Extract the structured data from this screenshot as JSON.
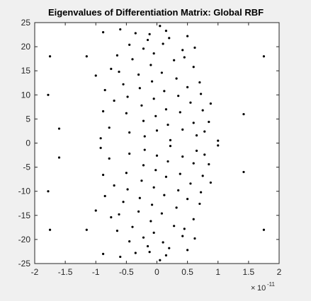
{
  "chart_data": {
    "type": "scatter",
    "title": "Eigenvalues of Differentiation Matrix: Global RBF",
    "xlabel": "",
    "ylabel": "",
    "x_exponent_label": "10",
    "x_exponent_power": "-11",
    "xlim": [
      -2,
      2
    ],
    "ylim": [
      -25,
      25
    ],
    "x_ticks": [
      -2,
      -1.5,
      -1,
      -0.5,
      0,
      0.5,
      1,
      1.5,
      2
    ],
    "x_tick_labels": [
      "-2",
      "-1.5",
      "-1",
      "-0.5",
      "0",
      "0.5",
      "1",
      "1.5",
      "2"
    ],
    "y_ticks": [
      -25,
      -20,
      -15,
      -10,
      -5,
      0,
      5,
      10,
      15,
      20,
      25
    ],
    "y_tick_labels": [
      "-25",
      "-20",
      "-15",
      "-10",
      "-5",
      "0",
      "5",
      "10",
      "15",
      "20",
      "25"
    ],
    "grid": false,
    "colors": {
      "marker": "#000000",
      "axes_bg": "#ffffff",
      "figure_bg": "#f0f0f0"
    },
    "series": [
      {
        "name": "",
        "points": [
          [
            -1.75,
            18
          ],
          [
            -1.75,
            -18
          ],
          [
            1.75,
            18
          ],
          [
            1.75,
            -18
          ],
          [
            -1.78,
            10
          ],
          [
            -1.78,
            -10
          ],
          [
            1.42,
            6
          ],
          [
            1.42,
            -6
          ],
          [
            -1.6,
            3
          ],
          [
            -1.6,
            -3
          ],
          [
            -1.15,
            18
          ],
          [
            -1.15,
            -18
          ],
          [
            -1.0,
            14
          ],
          [
            -1.0,
            -14
          ],
          [
            -0.88,
            23
          ],
          [
            -0.88,
            -23
          ],
          [
            -0.6,
            23.6
          ],
          [
            -0.6,
            -23.6
          ],
          [
            -0.35,
            22.8
          ],
          [
            -0.35,
            -22.8
          ],
          [
            -0.12,
            22.6
          ],
          [
            -0.12,
            -22.6
          ],
          [
            0.05,
            24.3
          ],
          [
            0.05,
            -24.3
          ],
          [
            0.15,
            23.3
          ],
          [
            0.15,
            -23.3
          ],
          [
            0.5,
            22.2
          ],
          [
            0.5,
            -22.2
          ],
          [
            -0.75,
            15.4
          ],
          [
            -0.75,
            -15.4
          ],
          [
            -0.62,
            14.8
          ],
          [
            -0.62,
            -14.8
          ],
          [
            -0.4,
            17.4
          ],
          [
            -0.4,
            -17.4
          ],
          [
            -0.22,
            19.6
          ],
          [
            -0.22,
            -19.6
          ],
          [
            -0.05,
            18.6
          ],
          [
            -0.05,
            -18.6
          ],
          [
            0.1,
            20.6
          ],
          [
            0.1,
            -20.6
          ],
          [
            0.28,
            17.2
          ],
          [
            0.28,
            -17.2
          ],
          [
            0.42,
            19.3
          ],
          [
            0.42,
            -19.3
          ],
          [
            0.6,
            15.8
          ],
          [
            0.6,
            -15.8
          ],
          [
            0.7,
            12.6
          ],
          [
            0.7,
            -12.6
          ],
          [
            0.88,
            8.2
          ],
          [
            0.88,
            -8.2
          ],
          [
            1.0,
            0.5
          ],
          [
            1.0,
            -0.5
          ],
          [
            0.85,
            4.4
          ],
          [
            0.85,
            -4.4
          ],
          [
            -0.92,
            1.0
          ],
          [
            -0.92,
            -1.0
          ],
          [
            -0.88,
            6.6
          ],
          [
            -0.88,
            -6.6
          ],
          [
            -0.85,
            11.0
          ],
          [
            -0.85,
            -11.0
          ],
          [
            -0.7,
            8.8
          ],
          [
            -0.7,
            -8.8
          ],
          [
            -0.78,
            3.2
          ],
          [
            -0.78,
            -3.2
          ],
          [
            -0.55,
            12.2
          ],
          [
            -0.55,
            -12.2
          ],
          [
            -0.48,
            9.6
          ],
          [
            -0.48,
            -9.6
          ],
          [
            -0.5,
            6.2
          ],
          [
            -0.5,
            -6.2
          ],
          [
            -0.45,
            2.2
          ],
          [
            -0.45,
            -2.2
          ],
          [
            -0.3,
            14.2
          ],
          [
            -0.3,
            -14.2
          ],
          [
            -0.28,
            11.4
          ],
          [
            -0.28,
            -11.4
          ],
          [
            -0.25,
            7.8
          ],
          [
            -0.25,
            -7.8
          ],
          [
            -0.22,
            4.6
          ],
          [
            -0.22,
            -4.6
          ],
          [
            -0.2,
            1.4
          ],
          [
            -0.2,
            -1.4
          ],
          [
            -0.1,
            16.2
          ],
          [
            -0.1,
            -16.2
          ],
          [
            -0.08,
            12.8
          ],
          [
            -0.08,
            -12.8
          ],
          [
            -0.05,
            9.2
          ],
          [
            -0.05,
            -9.2
          ],
          [
            -0.02,
            5.6
          ],
          [
            -0.02,
            -5.6
          ],
          [
            0.0,
            2.6
          ],
          [
            0.0,
            -2.6
          ],
          [
            0.08,
            14.6
          ],
          [
            0.08,
            -14.6
          ],
          [
            0.12,
            10.8
          ],
          [
            0.12,
            -10.8
          ],
          [
            0.15,
            7.0
          ],
          [
            0.15,
            -7.0
          ],
          [
            0.18,
            3.8
          ],
          [
            0.18,
            -3.8
          ],
          [
            0.22,
            0.6
          ],
          [
            0.22,
            -0.6
          ],
          [
            0.32,
            13.4
          ],
          [
            0.32,
            -13.4
          ],
          [
            0.35,
            9.8
          ],
          [
            0.35,
            -9.8
          ],
          [
            0.38,
            6.4
          ],
          [
            0.38,
            -6.4
          ],
          [
            0.42,
            2.8
          ],
          [
            0.42,
            -2.8
          ],
          [
            0.5,
            11.6
          ],
          [
            0.5,
            -11.6
          ],
          [
            0.55,
            8.4
          ],
          [
            0.55,
            -8.4
          ],
          [
            0.6,
            4.2
          ],
          [
            0.6,
            -4.2
          ],
          [
            0.65,
            1.6
          ],
          [
            0.65,
            -1.6
          ],
          [
            0.72,
            10.2
          ],
          [
            0.72,
            -10.2
          ],
          [
            0.75,
            6.8
          ],
          [
            0.75,
            -6.8
          ],
          [
            0.78,
            2.4
          ],
          [
            0.78,
            -2.4
          ],
          [
            -0.65,
            18.2
          ],
          [
            -0.65,
            -18.2
          ],
          [
            -0.45,
            20.4
          ],
          [
            -0.45,
            -20.4
          ],
          [
            -0.15,
            21.4
          ],
          [
            -0.15,
            -21.4
          ],
          [
            0.2,
            21.8
          ],
          [
            0.2,
            -21.8
          ],
          [
            0.45,
            17.8
          ],
          [
            0.45,
            -17.8
          ],
          [
            0.62,
            19.8
          ],
          [
            0.62,
            -19.8
          ]
        ]
      }
    ]
  }
}
